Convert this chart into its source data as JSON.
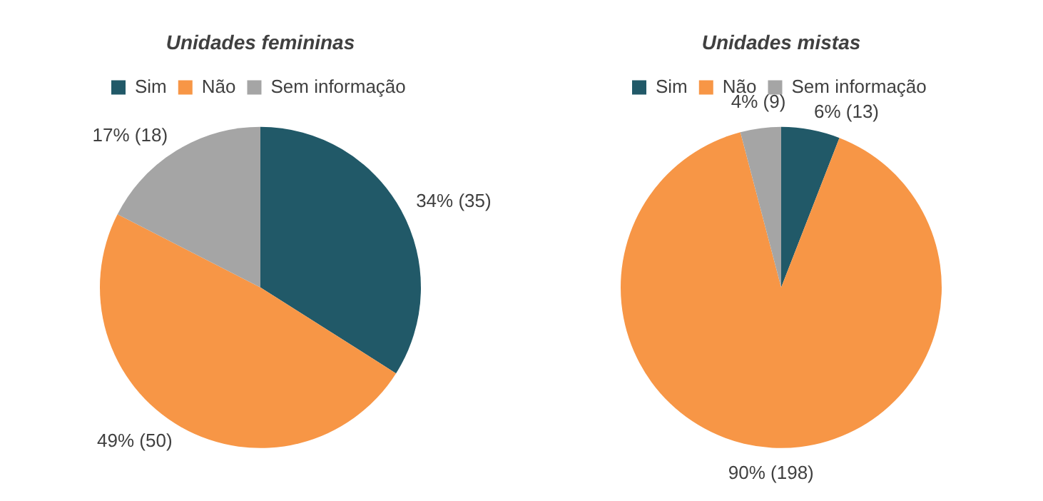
{
  "chart_data": [
    {
      "type": "pie",
      "title": "Unidades femininas",
      "categories": [
        "Sim",
        "Não",
        "Sem informação"
      ],
      "values": [
        35,
        50,
        18
      ],
      "colors": [
        "#215968",
        "#f79646",
        "#a5a5a5"
      ],
      "value_labels": [
        "34% (35)",
        "49% (50)",
        "17% (18)"
      ],
      "legend": "top"
    },
    {
      "type": "pie",
      "title": "Unidades mistas",
      "categories": [
        "Sim",
        "Não",
        "Sem informação"
      ],
      "values": [
        13,
        198,
        9
      ],
      "colors": [
        "#215968",
        "#f79646",
        "#a5a5a5"
      ],
      "value_labels": [
        "6% (13)",
        "90% (198)",
        "4% (9)"
      ],
      "legend": "top"
    }
  ]
}
